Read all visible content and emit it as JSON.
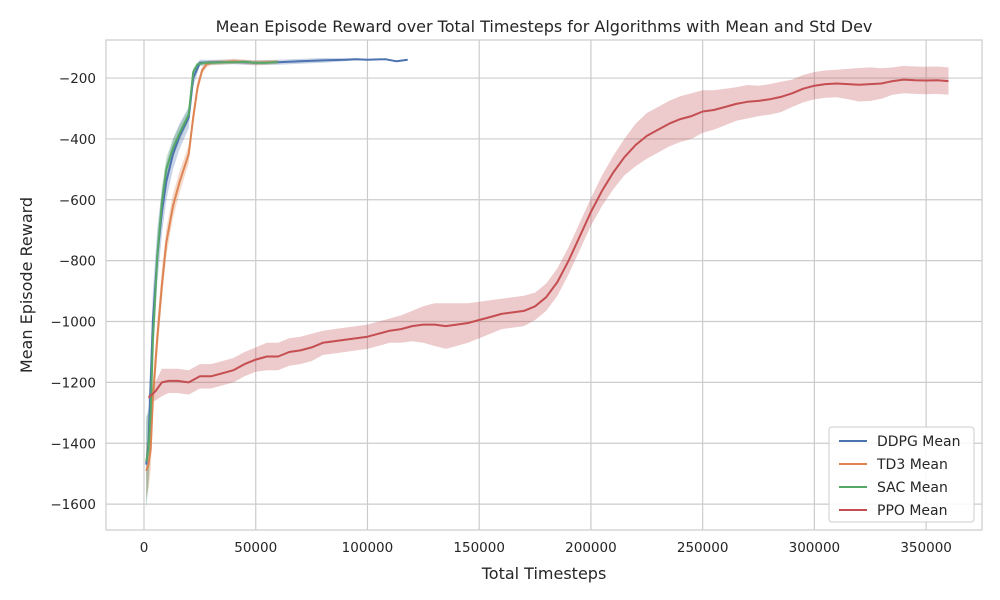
{
  "chart_data": {
    "type": "line",
    "title": "Mean Episode Reward over Total Timesteps for Algorithms with Mean and Std Dev",
    "xlabel": "Total Timesteps",
    "ylabel": "Mean Episode Reward",
    "xlim": [
      -17000,
      375000
    ],
    "ylim": [
      -1685,
      -75
    ],
    "xticks": [
      0,
      50000,
      100000,
      150000,
      200000,
      250000,
      300000,
      350000
    ],
    "xtick_labels": [
      "0",
      "50000",
      "100000",
      "150000",
      "200000",
      "250000",
      "300000",
      "350000"
    ],
    "yticks": [
      -1600,
      -1400,
      -1200,
      -1000,
      -800,
      -600,
      -400,
      -200
    ],
    "ytick_labels": [
      "−1600",
      "−1400",
      "−1200",
      "−1000",
      "−800",
      "−600",
      "−400",
      "−200"
    ],
    "grid": true,
    "legend_position": "bottom-right",
    "series": [
      {
        "name": "DDPG Mean",
        "color": "#4c72b0",
        "x": [
          1000,
          2000,
          3000,
          4000,
          6000,
          8000,
          10000,
          13000,
          16000,
          20000,
          22000,
          25000,
          30000,
          40000,
          50000,
          60000,
          70000,
          80000,
          90000,
          95000,
          100000,
          108000,
          113000,
          118000
        ],
        "y": [
          -1470,
          -1400,
          -1200,
          -1000,
          -780,
          -640,
          -540,
          -450,
          -390,
          -330,
          -200,
          -150,
          -148,
          -147,
          -150,
          -148,
          -145,
          -142,
          -140,
          -138,
          -140,
          -138,
          -145,
          -140
        ],
        "std": [
          140,
          120,
          110,
          100,
          90,
          75,
          60,
          50,
          42,
          35,
          28,
          10,
          8,
          8,
          8,
          8,
          8,
          8,
          5,
          3,
          2,
          2,
          2,
          2
        ]
      },
      {
        "name": "TD3 Mean",
        "color": "#dd8452",
        "x": [
          1000,
          2000,
          3000,
          4000,
          6000,
          8000,
          10000,
          13000,
          16000,
          20000,
          22000,
          24000,
          26000,
          28000,
          30000,
          35000,
          40000,
          45000,
          50000,
          55000,
          60000
        ],
        "y": [
          -1490,
          -1470,
          -1420,
          -1250,
          -1050,
          -880,
          -740,
          -620,
          -540,
          -450,
          -330,
          -230,
          -175,
          -155,
          -150,
          -148,
          -145,
          -147,
          -150,
          -148,
          -147
        ],
        "std": [
          90,
          80,
          70,
          60,
          55,
          50,
          45,
          40,
          35,
          30,
          28,
          20,
          12,
          10,
          8,
          8,
          8,
          8,
          8,
          8,
          6
        ]
      },
      {
        "name": "SAC Mean",
        "color": "#55a868",
        "x": [
          1000,
          2000,
          3000,
          4000,
          6000,
          8000,
          10000,
          13000,
          16000,
          20000,
          22000,
          24000,
          27000,
          30000,
          35000,
          40000,
          45000,
          50000,
          55000,
          60000
        ],
        "y": [
          -1460,
          -1420,
          -1300,
          -1060,
          -780,
          -610,
          -500,
          -430,
          -380,
          -320,
          -180,
          -155,
          -150,
          -150,
          -148,
          -148,
          -147,
          -150,
          -150,
          -147
        ],
        "std": [
          150,
          120,
          100,
          80,
          60,
          50,
          40,
          30,
          25,
          20,
          12,
          8,
          6,
          6,
          5,
          5,
          5,
          5,
          5,
          4
        ]
      },
      {
        "name": "PPO Mean",
        "color": "#c44e52",
        "x": [
          2000,
          5000,
          8000,
          11000,
          15000,
          20000,
          25000,
          30000,
          35000,
          40000,
          45000,
          50000,
          55000,
          60000,
          65000,
          70000,
          75000,
          80000,
          85000,
          90000,
          95000,
          100000,
          105000,
          110000,
          115000,
          120000,
          125000,
          130000,
          135000,
          140000,
          145000,
          150000,
          155000,
          160000,
          165000,
          170000,
          175000,
          180000,
          185000,
          190000,
          195000,
          200000,
          205000,
          210000,
          215000,
          220000,
          225000,
          230000,
          235000,
          240000,
          245000,
          250000,
          255000,
          260000,
          265000,
          270000,
          275000,
          280000,
          285000,
          290000,
          295000,
          300000,
          305000,
          310000,
          315000,
          320000,
          325000,
          330000,
          335000,
          340000,
          345000,
          350000,
          355000,
          360000
        ],
        "y": [
          -1250,
          -1230,
          -1200,
          -1195,
          -1195,
          -1200,
          -1180,
          -1180,
          -1170,
          -1160,
          -1140,
          -1125,
          -1115,
          -1115,
          -1100,
          -1095,
          -1085,
          -1070,
          -1065,
          -1060,
          -1055,
          -1050,
          -1040,
          -1030,
          -1025,
          -1015,
          -1010,
          -1010,
          -1015,
          -1010,
          -1005,
          -995,
          -985,
          -975,
          -970,
          -965,
          -950,
          -920,
          -870,
          -800,
          -720,
          -640,
          -570,
          -510,
          -460,
          -420,
          -390,
          -370,
          -350,
          -335,
          -325,
          -310,
          -305,
          -295,
          -285,
          -278,
          -275,
          -270,
          -262,
          -250,
          -235,
          -225,
          -220,
          -218,
          -220,
          -222,
          -220,
          -218,
          -210,
          -205,
          -207,
          -208,
          -207,
          -210
        ],
        "std": [
          10,
          30,
          45,
          40,
          40,
          40,
          40,
          40,
          40,
          40,
          40,
          40,
          45,
          45,
          45,
          45,
          45,
          40,
          40,
          40,
          40,
          40,
          40,
          40,
          45,
          50,
          60,
          70,
          75,
          70,
          65,
          60,
          55,
          50,
          50,
          50,
          45,
          45,
          45,
          45,
          45,
          45,
          50,
          55,
          60,
          70,
          75,
          75,
          75,
          75,
          75,
          70,
          65,
          60,
          55,
          55,
          50,
          50,
          50,
          45,
          45,
          45,
          45,
          45,
          50,
          55,
          55,
          50,
          45,
          45,
          45,
          45,
          45,
          45
        ]
      }
    ]
  }
}
